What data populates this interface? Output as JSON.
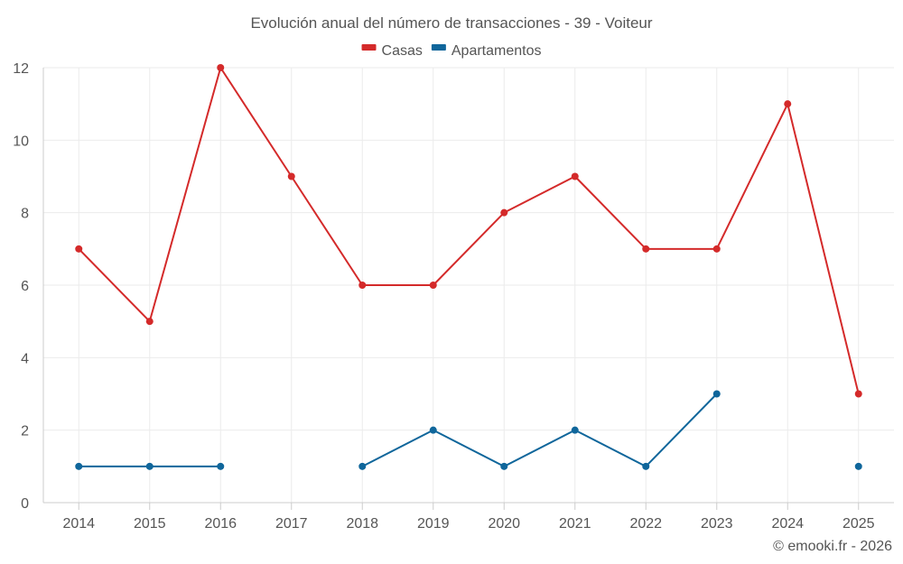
{
  "chart_data": {
    "type": "line",
    "title": "Evolución anual del número de transacciones - 39 - Voiteur",
    "xlabel": "",
    "ylabel": "",
    "categories": [
      "2014",
      "2015",
      "2016",
      "2017",
      "2018",
      "2019",
      "2020",
      "2021",
      "2022",
      "2023",
      "2024",
      "2025"
    ],
    "ylim": [
      0,
      12
    ],
    "yticks": [
      0,
      2,
      4,
      6,
      8,
      10,
      12
    ],
    "grid": true,
    "legend_position": "top-center",
    "series": [
      {
        "name": "Casas",
        "color": "#d42a2a",
        "values": [
          7,
          5,
          12,
          9,
          6,
          6,
          8,
          9,
          7,
          7,
          11,
          3
        ]
      },
      {
        "name": "Apartamentos",
        "color": "#0f669b",
        "values": [
          1,
          1,
          1,
          null,
          1,
          2,
          1,
          2,
          1,
          3,
          null,
          1
        ]
      }
    ]
  },
  "credit": "© emooki.fr - 2026"
}
